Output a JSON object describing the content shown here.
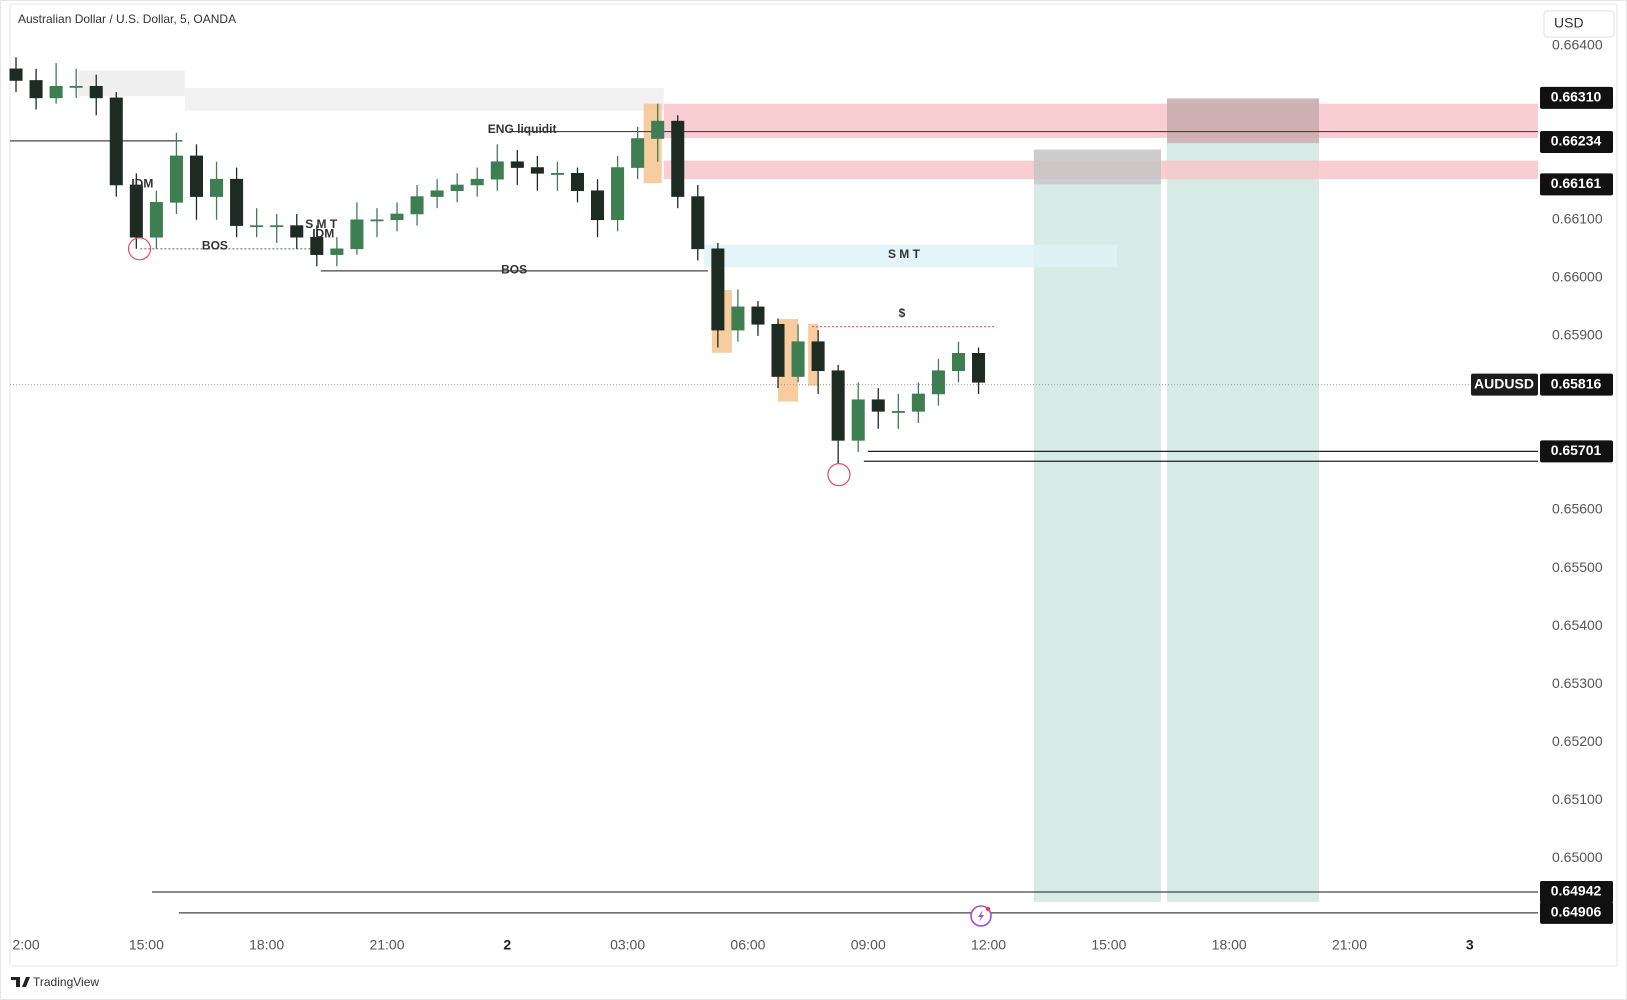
{
  "chart_data": {
    "type": "candlestick",
    "title": "Australian Dollar / U.S. Dollar, 5, OANDA",
    "currency": "USD",
    "x": [
      11.75,
      12.25,
      12.75,
      13.25,
      13.75,
      14.25,
      14.75,
      15.25,
      15.75,
      16.25,
      16.75,
      17.25,
      17.75,
      18.25,
      18.75,
      19.25,
      19.75,
      20.25,
      20.75,
      21.25,
      21.75,
      22.25,
      22.75,
      23.25,
      23.75,
      24.25,
      24.75,
      25.25,
      25.75,
      26.25,
      26.75,
      27.25,
      27.75,
      28.25,
      28.75,
      29.25,
      29.75,
      30.25,
      30.75,
      31.25,
      31.75,
      32.25,
      32.75,
      33.25,
      33.75,
      34.25,
      34.75,
      35.25,
      35.75
    ],
    "open": [
      0.6636,
      0.6634,
      0.6631,
      0.6633,
      0.6633,
      0.6631,
      0.6616,
      0.6607,
      0.6613,
      0.6621,
      0.6614,
      0.6617,
      0.6609,
      0.6609,
      0.6609,
      0.6607,
      0.6604,
      0.6605,
      0.661,
      0.661,
      0.6611,
      0.6614,
      0.6615,
      0.6616,
      0.6617,
      0.662,
      0.6619,
      0.6618,
      0.6618,
      0.6615,
      0.661,
      0.6619,
      0.6624,
      0.6627,
      0.6614,
      0.6605,
      0.6591,
      0.6595,
      0.6592,
      0.6583,
      0.6589,
      0.6584,
      0.6572,
      0.6579,
      0.6577,
      0.6577,
      0.658,
      0.6584,
      0.6587
    ],
    "high": [
      0.6638,
      0.6636,
      0.6637,
      0.6636,
      0.6635,
      0.6632,
      0.6618,
      0.6615,
      0.6625,
      0.6623,
      0.662,
      0.6619,
      0.6612,
      0.6611,
      0.6611,
      0.6609,
      0.6607,
      0.6613,
      0.6612,
      0.6613,
      0.6616,
      0.6617,
      0.6618,
      0.6619,
      0.6623,
      0.6622,
      0.6621,
      0.662,
      0.6619,
      0.6617,
      0.6621,
      0.6626,
      0.663,
      0.6628,
      0.6616,
      0.6606,
      0.6598,
      0.6596,
      0.6593,
      0.6592,
      0.6591,
      0.6585,
      0.6582,
      0.6581,
      0.658,
      0.6582,
      0.6586,
      0.6589,
      0.6588
    ],
    "low": [
      0.6632,
      0.6629,
      0.663,
      0.6631,
      0.6628,
      0.6614,
      0.6605,
      0.6605,
      0.6611,
      0.661,
      0.661,
      0.6607,
      0.6607,
      0.6606,
      0.6605,
      0.6602,
      0.6602,
      0.6604,
      0.6607,
      0.6608,
      0.6609,
      0.6612,
      0.6613,
      0.6614,
      0.6615,
      0.6616,
      0.6615,
      0.6615,
      0.6613,
      0.6607,
      0.6608,
      0.6617,
      0.662,
      0.6612,
      0.6603,
      0.6588,
      0.6589,
      0.659,
      0.6581,
      0.6582,
      0.658,
      0.6568,
      0.657,
      0.6574,
      0.6574,
      0.6575,
      0.6578,
      0.6582,
      0.658
    ],
    "close": [
      0.6634,
      0.6631,
      0.6633,
      0.6633,
      0.6631,
      0.6616,
      0.6607,
      0.6613,
      0.6621,
      0.6614,
      0.6617,
      0.6609,
      0.6609,
      0.6609,
      0.6607,
      0.6604,
      0.6605,
      0.661,
      0.661,
      0.6611,
      0.6614,
      0.6615,
      0.6616,
      0.6617,
      0.662,
      0.6619,
      0.6618,
      0.6618,
      0.6615,
      0.661,
      0.6619,
      0.6624,
      0.6627,
      0.6614,
      0.6605,
      0.6591,
      0.6595,
      0.6592,
      0.6583,
      0.6589,
      0.6584,
      0.6572,
      0.6579,
      0.6577,
      0.6577,
      0.658,
      0.6584,
      0.6587,
      0.6582
    ],
    "up_color": "#3f7d52",
    "down_color": "#1e2b23",
    "xlim": [
      11.6,
      49.7
    ],
    "ylim": [
      0.6488,
      0.6647
    ],
    "grid": false,
    "xticks": [
      {
        "value": 12,
        "label": "2:00"
      },
      {
        "value": 15,
        "label": "15:00"
      },
      {
        "value": 18,
        "label": "18:00"
      },
      {
        "value": 21,
        "label": "21:00"
      },
      {
        "value": 24,
        "label": "2"
      },
      {
        "value": 27,
        "label": "03:00"
      },
      {
        "value": 30,
        "label": "06:00"
      },
      {
        "value": 33,
        "label": "09:00"
      },
      {
        "value": 36,
        "label": "12:00"
      },
      {
        "value": 39,
        "label": "15:00"
      },
      {
        "value": 42,
        "label": "18:00"
      },
      {
        "value": 45,
        "label": "21:00"
      },
      {
        "value": 48,
        "label": "3"
      }
    ],
    "yticks": [
      {
        "value": 0.664,
        "label": "0.66400"
      },
      {
        "value": 0.661,
        "label": "0.66100"
      },
      {
        "value": 0.66,
        "label": "0.66000"
      },
      {
        "value": 0.659,
        "label": "0.65900"
      },
      {
        "value": 0.656,
        "label": "0.65600"
      },
      {
        "value": 0.655,
        "label": "0.65500"
      },
      {
        "value": 0.654,
        "label": "0.65400"
      },
      {
        "value": 0.653,
        "label": "0.65300"
      },
      {
        "value": 0.652,
        "label": "0.65200"
      },
      {
        "value": 0.651,
        "label": "0.65100"
      },
      {
        "value": 0.65,
        "label": "0.65000"
      }
    ],
    "zones": [
      {
        "x": [
          37.13,
          40.3
        ],
        "y": [
          0.64925,
          0.66161
        ],
        "color": "#cfe7e2"
      },
      {
        "x": [
          40.45,
          44.24
        ],
        "y": [
          0.64925,
          0.66232
        ],
        "color": "#cfe7e2"
      },
      {
        "x": [
          13.3,
          15.96
        ],
        "y": [
          0.66313,
          0.66357
        ],
        "color": "#ececec"
      },
      {
        "x": [
          15.96,
          27.9
        ],
        "y": [
          0.66288,
          0.66327
        ],
        "color": "#eeeeee"
      },
      {
        "x": [
          27.9,
          49.7
        ],
        "y": [
          0.66241,
          0.663
        ],
        "color": "#f7c6ca"
      },
      {
        "x": [
          27.9,
          49.7
        ],
        "y": [
          0.6617,
          0.66202
        ],
        "color": "#f7c6ca"
      },
      {
        "x": [
          28.9,
          39.2
        ],
        "y": [
          0.66018,
          0.66057
        ],
        "color": "#dff3f8"
      },
      {
        "x": [
          37.13,
          40.3
        ],
        "y": [
          0.66161,
          0.66221
        ],
        "color": "#c4c4c4"
      },
      {
        "x": [
          40.45,
          44.24
        ],
        "y": [
          0.66232,
          0.66309
        ],
        "color": "#c7a9ad"
      },
      {
        "x": [
          27.4,
          27.85
        ],
        "y": [
          0.66163,
          0.663
        ],
        "color": "#f6c48f"
      },
      {
        "x": [
          29.1,
          29.6
        ],
        "y": [
          0.65871,
          0.65979
        ],
        "color": "#f6c48f"
      },
      {
        "x": [
          30.75,
          31.25
        ],
        "y": [
          0.65787,
          0.65929
        ],
        "color": "#f6c48f"
      },
      {
        "x": [
          31.5,
          31.75
        ],
        "y": [
          0.65814,
          0.65921
        ],
        "color": "#f6c48f"
      }
    ],
    "levels": [
      {
        "x": [
          11.6,
          15.9
        ],
        "value": 0.66236,
        "color": "#444444",
        "dashed": false
      },
      {
        "x": [
          24.05,
          49.7
        ],
        "value": 0.66252,
        "color": "#444444",
        "dashed": false
      },
      {
        "x": [
          14.85,
          19.1
        ],
        "value": 0.6605,
        "color": "#777777",
        "dashed": true
      },
      {
        "x": [
          19.35,
          29.0
        ],
        "value": 0.66012,
        "color": "#444444",
        "dashed": false
      },
      {
        "x": [
          31.6,
          36.2
        ],
        "value": 0.65916,
        "color": "#e06a8a",
        "dashed": true
      },
      {
        "x": [
          32.99,
          49.7
        ],
        "value": 0.65701,
        "color": "#222222",
        "dashed": false
      },
      {
        "x": [
          32.89,
          49.7
        ],
        "value": 0.65684,
        "color": "#222222",
        "dashed": false
      },
      {
        "x": [
          15.14,
          49.7
        ],
        "value": 0.64942,
        "color": "#444444",
        "dashed": false
      },
      {
        "x": [
          15.81,
          49.7
        ],
        "value": 0.64906,
        "color": "#444444",
        "dashed": false
      }
    ],
    "annotations": [
      {
        "text": "BOS",
        "x": 16.71,
        "y": 0.66054,
        "color": "#222222"
      },
      {
        "text": "BOS",
        "x": 24.17,
        "y": 0.66013,
        "color": "#222222"
      },
      {
        "text": "IDM",
        "x": 14.9,
        "y": 0.66161,
        "color": "#666666"
      },
      {
        "text": "S M T",
        "x": 19.36,
        "y": 0.66091,
        "color": "#555555"
      },
      {
        "text": "IDM",
        "x": 19.41,
        "y": 0.66075,
        "color": "#888888"
      },
      {
        "text": "ENG liquidit",
        "x": 24.37,
        "y": 0.66255,
        "color": "#e0455c"
      },
      {
        "text": "S M T",
        "x": 33.89,
        "y": 0.6604,
        "color": "#666666"
      },
      {
        "text": "$",
        "x": 33.84,
        "y": 0.65938,
        "color": "#e0457c"
      }
    ],
    "markers": [
      {
        "x": 14.83,
        "y": 0.6605,
        "color": "#e05060"
      },
      {
        "x": 32.27,
        "y": 0.65661,
        "color": "#e05060"
      }
    ],
    "price_labels": [
      {
        "value": 0.6631,
        "label": "0.66310"
      },
      {
        "value": 0.66234,
        "label": "0.66234"
      },
      {
        "value": 0.66161,
        "label": "0.66161"
      },
      {
        "value": 0.65701,
        "label": "0.65701"
      },
      {
        "value": 0.64942,
        "label": "0.64942"
      },
      {
        "value": 0.64906,
        "label": "0.64906"
      }
    ],
    "last_price": {
      "name": "AUDUSD",
      "value": 0.65816,
      "label": "0.65816"
    }
  },
  "footer": "TradingView"
}
